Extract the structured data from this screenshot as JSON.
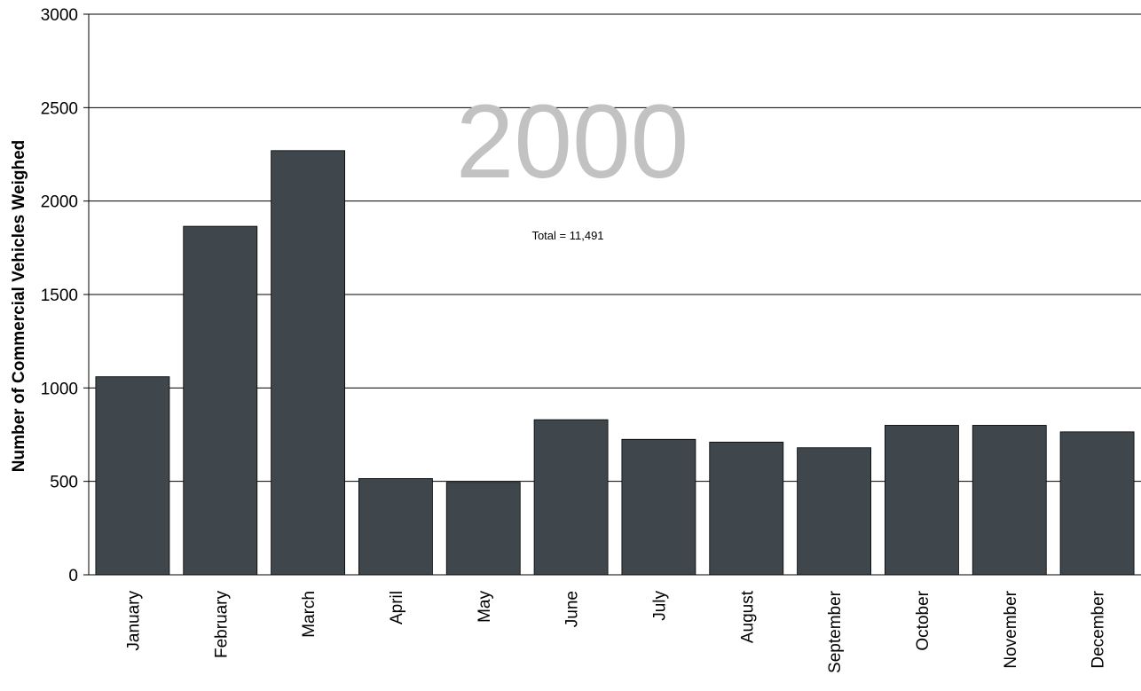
{
  "chart_data": {
    "type": "bar",
    "title": "2000",
    "annotation": "Total = 11,491",
    "ylabel": "Number of Commercial Vehicles Weighed",
    "xlabel": "",
    "ylim": [
      0,
      3000
    ],
    "yticks": [
      0,
      500,
      1000,
      1500,
      2000,
      2500,
      3000
    ],
    "categories": [
      "January",
      "February",
      "March",
      "April",
      "May",
      "June",
      "July",
      "August",
      "September",
      "October",
      "November",
      "December"
    ],
    "values": [
      1060,
      1865,
      2270,
      515,
      495,
      830,
      725,
      710,
      680,
      800,
      800,
      765
    ],
    "grid": true,
    "bar_color": "#3f474c",
    "title_color": "#c2c2c2"
  }
}
